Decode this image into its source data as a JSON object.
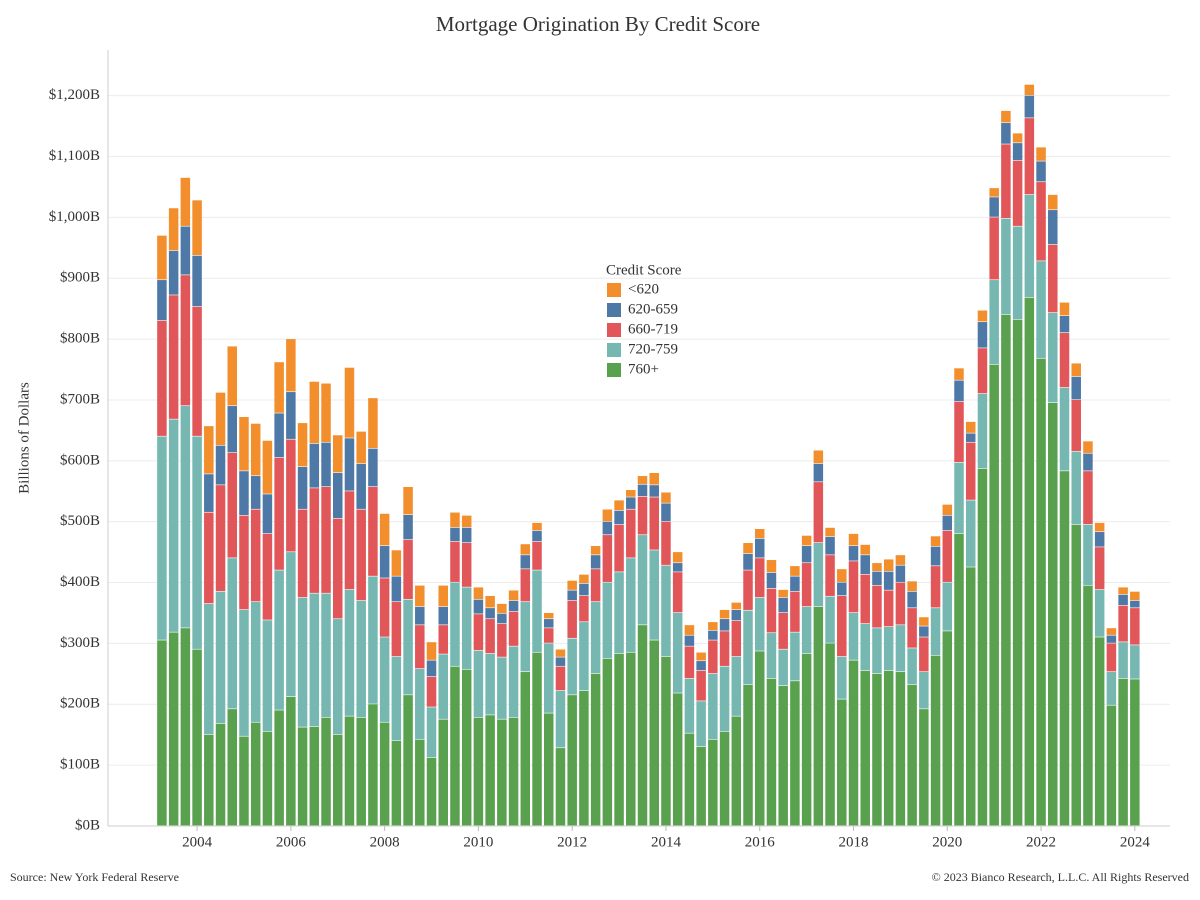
{
  "chart_data": {
    "type": "stacked_bar",
    "title": "Mortgage Origination By Credit Score",
    "y_label": "Billions of Dollars",
    "legend_title": "Credit Score",
    "source": "Source: New York Federal Reserve",
    "copyright": "© 2023 Bianco Research, L.L.C. All Rights Reserved",
    "grid": true,
    "xlim": [
      2002.1,
      2024.75
    ],
    "xticks": [
      2004,
      2006,
      2008,
      2010,
      2012,
      2014,
      2016,
      2018,
      2020,
      2022,
      2024
    ],
    "ylim": [
      0,
      1275
    ],
    "yticks": [
      {
        "value": 0,
        "label": "$0B"
      },
      {
        "value": 100,
        "label": "$100B"
      },
      {
        "value": 200,
        "label": "$200B"
      },
      {
        "value": 300,
        "label": "$300B"
      },
      {
        "value": 400,
        "label": "$400B"
      },
      {
        "value": 500,
        "label": "$500B"
      },
      {
        "value": 600,
        "label": "$600B"
      },
      {
        "value": 700,
        "label": "$700B"
      },
      {
        "value": 800,
        "label": "$800B"
      },
      {
        "value": 900,
        "label": "$900B"
      },
      {
        "value": 1000,
        "label": "$1,000B"
      },
      {
        "value": 1100,
        "label": "$1,100B"
      },
      {
        "value": 1200,
        "label": "$1,200B"
      }
    ],
    "x": [
      2003.25,
      2003.5,
      2003.75,
      2004,
      2004.25,
      2004.5,
      2004.75,
      2005,
      2005.25,
      2005.5,
      2005.75,
      2006,
      2006.25,
      2006.5,
      2006.75,
      2007,
      2007.25,
      2007.5,
      2007.75,
      2008,
      2008.25,
      2008.5,
      2008.75,
      2009,
      2009.25,
      2009.5,
      2009.75,
      2010,
      2010.25,
      2010.5,
      2010.75,
      2011,
      2011.25,
      2011.5,
      2011.75,
      2012,
      2012.25,
      2012.5,
      2012.75,
      2013,
      2013.25,
      2013.5,
      2013.75,
      2014,
      2014.25,
      2014.5,
      2014.75,
      2015,
      2015.25,
      2015.5,
      2015.75,
      2016,
      2016.25,
      2016.5,
      2016.75,
      2017,
      2017.25,
      2017.5,
      2017.75,
      2018,
      2018.25,
      2018.5,
      2018.75,
      2019,
      2019.25,
      2019.5,
      2019.75,
      2020,
      2020.25,
      2020.5,
      2020.75,
      2021,
      2021.25,
      2021.5,
      2021.75,
      2022,
      2022.25,
      2022.5,
      2022.75,
      2023,
      2023.25,
      2023.5,
      2023.75,
      2024
    ],
    "series": [
      {
        "name": "<620",
        "color": "#f28e2b",
        "values": [
          73,
          70,
          80,
          91,
          79,
          87,
          98,
          89,
          86,
          88,
          84,
          87,
          72,
          102,
          97,
          62,
          116,
          53,
          83,
          53,
          43,
          46,
          35,
          30,
          35,
          25,
          20,
          20,
          20,
          16,
          17,
          18,
          13,
          10,
          13,
          16,
          15,
          15,
          20,
          17,
          12,
          14,
          20,
          18,
          18,
          17,
          14,
          14,
          15,
          12,
          18,
          16,
          21,
          13,
          17,
          17,
          22,
          15,
          22,
          20,
          17,
          14,
          20,
          17,
          17,
          15,
          17,
          18,
          20,
          19,
          19,
          15,
          20,
          16,
          18,
          23,
          25,
          22,
          22,
          20,
          15,
          12,
          12,
          15
        ]
      },
      {
        "name": "620-659",
        "color": "#4e79a7",
        "values": [
          67,
          73,
          80,
          84,
          63,
          65,
          77,
          73,
          55,
          65,
          73,
          78,
          70,
          73,
          73,
          75,
          87,
          75,
          63,
          53,
          42,
          41,
          30,
          27,
          30,
          23,
          25,
          24,
          18,
          17,
          18,
          23,
          18,
          15,
          15,
          17,
          20,
          23,
          22,
          23,
          20,
          20,
          20,
          30,
          15,
          18,
          16,
          16,
          20,
          18,
          27,
          32,
          26,
          25,
          25,
          28,
          30,
          30,
          22,
          25,
          32,
          23,
          31,
          28,
          27,
          18,
          32,
          25,
          35,
          15,
          43,
          33,
          35,
          29,
          37,
          34,
          57,
          28,
          38,
          29,
          25,
          13,
          18,
          12
        ]
      },
      {
        "name": "660-719",
        "color": "#e15759",
        "values": [
          190,
          204,
          215,
          213,
          150,
          175,
          173,
          155,
          152,
          142,
          185,
          185,
          145,
          173,
          175,
          165,
          162,
          150,
          147,
          97,
          90,
          98,
          72,
          50,
          48,
          67,
          73,
          60,
          57,
          55,
          57,
          54,
          47,
          25,
          40,
          62,
          43,
          54,
          78,
          78,
          80,
          63,
          87,
          72,
          67,
          53,
          50,
          55,
          58,
          59,
          66,
          65,
          73,
          60,
          67,
          72,
          100,
          68,
          100,
          85,
          81,
          70,
          60,
          70,
          66,
          57,
          69,
          85,
          100,
          95,
          75,
          103,
          122,
          108,
          126,
          130,
          112,
          90,
          85,
          88,
          70,
          47,
          60,
          61
        ]
      },
      {
        "name": "720-759",
        "color": "#76b7b2",
        "values": [
          335,
          350,
          365,
          350,
          215,
          217,
          248,
          208,
          198,
          183,
          230,
          238,
          213,
          219,
          204,
          190,
          208,
          192,
          210,
          140,
          138,
          157,
          116,
          83,
          107,
          138,
          135,
          110,
          101,
          102,
          117,
          115,
          135,
          115,
          94,
          93,
          113,
          118,
          125,
          134,
          155,
          148,
          148,
          150,
          132,
          90,
          75,
          108,
          107,
          98,
          122,
          88,
          75,
          60,
          80,
          77,
          105,
          77,
          70,
          78,
          77,
          75,
          72,
          77,
          60,
          61,
          78,
          80,
          117,
          110,
          123,
          139,
          158,
          153,
          169,
          160,
          148,
          137,
          120,
          100,
          78,
          55,
          60,
          56
        ]
      },
      {
        "name": "760+",
        "color": "#59a14f",
        "values": [
          305,
          318,
          325,
          290,
          150,
          168,
          192,
          147,
          170,
          155,
          190,
          212,
          162,
          163,
          178,
          150,
          180,
          178,
          200,
          170,
          140,
          215,
          142,
          112,
          175,
          262,
          257,
          178,
          182,
          175,
          178,
          253,
          285,
          185,
          128,
          215,
          222,
          250,
          275,
          283,
          285,
          330,
          305,
          278,
          218,
          152,
          130,
          142,
          155,
          180,
          232,
          287,
          242,
          230,
          238,
          283,
          360,
          300,
          208,
          272,
          255,
          250,
          255,
          253,
          232,
          192,
          280,
          320,
          480,
          425,
          587,
          758,
          840,
          832,
          868,
          768,
          695,
          583,
          495,
          395,
          310,
          198,
          242,
          241
        ]
      }
    ]
  }
}
